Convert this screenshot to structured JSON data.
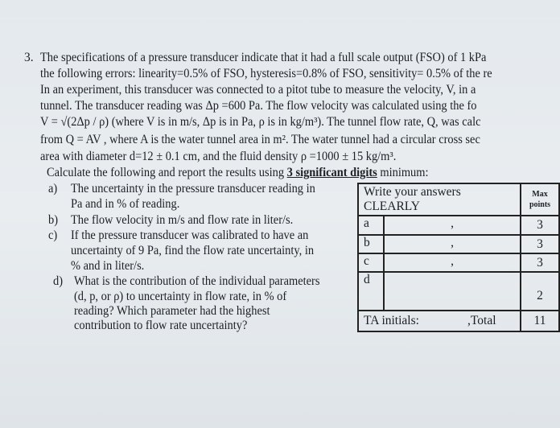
{
  "question": {
    "number": "3.",
    "lines": [
      "The specifications of a pressure transducer indicate that it had a full scale output (FSO) of 1 kPa",
      "the following errors: linearity=0.5% of FSO, hysteresis=0.8% of FSO, sensitivity= 0.5% of the re",
      "In an experiment, this transducer was connected to a pitot tube to measure the velocity, V, in a",
      "tunnel. The transducer reading was Δp =600 Pa. The flow velocity was calculated using the fo",
      "V = √(2Δp / ρ) (where V is in m/s, Δp is in Pa, ρ is in kg/m³).  The tunnel flow rate, Q, was calc",
      "from Q = AV , where A is the water tunnel area in m². The water tunnel had a circular cross sec",
      "area with diameter d=12 ± 0.1 cm, and the fluid density ρ =1000 ± 15 kg/m³."
    ],
    "instruction_prefix": "Calculate the following and report the results using ",
    "instruction_emphasis": "3 significant digits",
    "instruction_suffix": " minimum:",
    "parts": [
      {
        "label": "a)",
        "lines": [
          "The uncertainty in the pressure transducer reading in",
          "Pa and in % of reading."
        ]
      },
      {
        "label": "b)",
        "lines": [
          "The flow velocity in m/s and flow rate in liter/s."
        ]
      },
      {
        "label": "c)",
        "lines": [
          "If the pressure transducer was calibrated to have an",
          "uncertainty of 9 Pa, find the flow rate uncertainty, in",
          "% and in liter/s."
        ]
      },
      {
        "label": "d)",
        "lines": [
          "What is the contribution of the individual parameters",
          "(d, p, or ρ) to uncertainty in flow rate, in % of",
          "reading? Which parameter had the highest",
          "contribution to flow rate uncertainty?"
        ]
      }
    ]
  },
  "answer_table": {
    "header": [
      "Write your answers",
      "CLEARLY"
    ],
    "max_header": [
      "Max",
      "points"
    ],
    "rows": [
      {
        "label": "a",
        "separator": ",",
        "points": "3"
      },
      {
        "label": "b",
        "separator": ",",
        "points": "3"
      },
      {
        "label": "c",
        "separator": ",",
        "points": "3"
      },
      {
        "label": "d",
        "separator": "",
        "points": "2"
      }
    ],
    "ta_label": "TA initials:",
    "total_label": ",Total",
    "total_points": "11"
  }
}
